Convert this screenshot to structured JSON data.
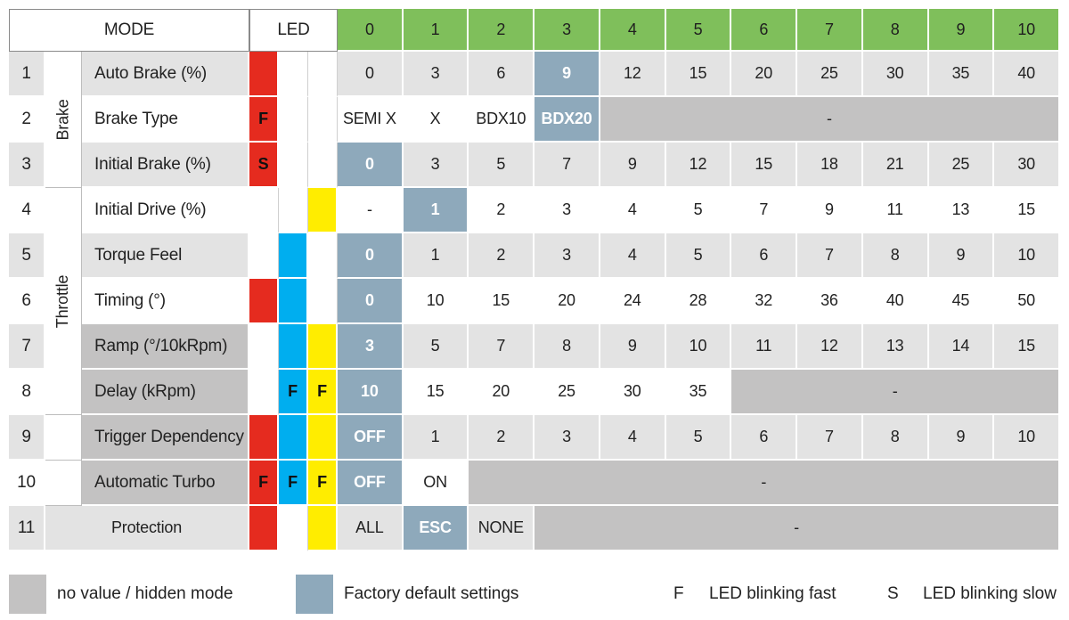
{
  "header": {
    "mode_label": "MODE",
    "led_label": "LED",
    "levels": [
      "0",
      "1",
      "2",
      "3",
      "4",
      "5",
      "6",
      "7",
      "8",
      "9",
      "10"
    ]
  },
  "groups": [
    {
      "name": "Brake",
      "rows": [
        1,
        3
      ]
    },
    {
      "name": "Throttle",
      "rows": [
        4,
        8
      ]
    }
  ],
  "rows": [
    {
      "num": "1",
      "name": "Auto Brake (%)",
      "leds": [
        {
          "color": "red",
          "mark": ""
        },
        {
          "color": "",
          "mark": ""
        },
        {
          "color": "",
          "mark": ""
        }
      ],
      "values": [
        "0",
        "3",
        "6",
        "9",
        "12",
        "15",
        "20",
        "25",
        "30",
        "35",
        "40"
      ],
      "default_index": 3
    },
    {
      "num": "2",
      "name": "Brake Type",
      "leds": [
        {
          "color": "red",
          "mark": "F"
        },
        {
          "color": "",
          "mark": ""
        },
        {
          "color": "",
          "mark": ""
        }
      ],
      "values": [
        "SEMI X",
        "X",
        "BDX10",
        "BDX20"
      ],
      "default_index": 3,
      "hidden_text": "-"
    },
    {
      "num": "3",
      "name": "Initial Brake (%)",
      "leds": [
        {
          "color": "red",
          "mark": "S"
        },
        {
          "color": "",
          "mark": ""
        },
        {
          "color": "",
          "mark": ""
        }
      ],
      "values": [
        "0",
        "3",
        "5",
        "7",
        "9",
        "12",
        "15",
        "18",
        "21",
        "25",
        "30"
      ],
      "default_index": 0
    },
    {
      "num": "4",
      "name": "Initial Drive (%)",
      "leds": [
        {
          "color": "",
          "mark": ""
        },
        {
          "color": "",
          "mark": ""
        },
        {
          "color": "yellow",
          "mark": ""
        }
      ],
      "values": [
        "-",
        "1",
        "2",
        "3",
        "4",
        "5",
        "7",
        "9",
        "11",
        "13",
        "15"
      ],
      "default_index": 1
    },
    {
      "num": "5",
      "name": "Torque Feel",
      "leds": [
        {
          "color": "",
          "mark": ""
        },
        {
          "color": "blue",
          "mark": ""
        },
        {
          "color": "",
          "mark": ""
        }
      ],
      "values": [
        "0",
        "1",
        "2",
        "3",
        "4",
        "5",
        "6",
        "7",
        "8",
        "9",
        "10"
      ],
      "default_index": 0
    },
    {
      "num": "6",
      "name": "Timing (°)",
      "leds": [
        {
          "color": "red",
          "mark": ""
        },
        {
          "color": "blue",
          "mark": ""
        },
        {
          "color": "",
          "mark": ""
        }
      ],
      "values": [
        "0",
        "10",
        "15",
        "20",
        "24",
        "28",
        "32",
        "36",
        "40",
        "45",
        "50"
      ],
      "default_index": 0
    },
    {
      "num": "7",
      "name": "Ramp (°/10kRpm)",
      "leds": [
        {
          "color": "",
          "mark": ""
        },
        {
          "color": "blue",
          "mark": ""
        },
        {
          "color": "yellow",
          "mark": ""
        }
      ],
      "values": [
        "3",
        "5",
        "7",
        "8",
        "9",
        "10",
        "11",
        "12",
        "13",
        "14",
        "15"
      ],
      "default_index": 0
    },
    {
      "num": "8",
      "name": "Delay (kRpm)",
      "leds": [
        {
          "color": "",
          "mark": ""
        },
        {
          "color": "blue",
          "mark": "F"
        },
        {
          "color": "yellow",
          "mark": "F"
        }
      ],
      "values": [
        "10",
        "15",
        "20",
        "25",
        "30",
        "35"
      ],
      "default_index": 0,
      "hidden_text": "-"
    },
    {
      "num": "9",
      "name": "Trigger Dependency",
      "leds": [
        {
          "color": "red",
          "mark": ""
        },
        {
          "color": "blue",
          "mark": ""
        },
        {
          "color": "yellow",
          "mark": ""
        }
      ],
      "values": [
        "OFF",
        "1",
        "2",
        "3",
        "4",
        "5",
        "6",
        "7",
        "8",
        "9",
        "10"
      ],
      "default_index": 0
    },
    {
      "num": "10",
      "name": "Automatic Turbo",
      "leds": [
        {
          "color": "red",
          "mark": "F"
        },
        {
          "color": "blue",
          "mark": "F"
        },
        {
          "color": "yellow",
          "mark": "F"
        }
      ],
      "values": [
        "OFF",
        "ON"
      ],
      "default_index": 0,
      "hidden_text": "-"
    },
    {
      "num": "11",
      "name": "Protection",
      "leds": [
        {
          "color": "red",
          "mark": ""
        },
        {
          "color": "",
          "mark": ""
        },
        {
          "color": "yellow",
          "mark": ""
        }
      ],
      "values": [
        "ALL",
        "ESC",
        "NONE"
      ],
      "default_index": 1,
      "hidden_text": "-"
    }
  ],
  "colors": {
    "header_green": "#7fbf5b",
    "default_blue_gray": "#8ea9bb",
    "hidden_gray": "#c3c2c2",
    "light_gray": "#e3e3e3",
    "led_red": "#e52b1f",
    "led_blue": "#00aeef",
    "led_yellow": "#ffed00"
  },
  "legend": {
    "hidden_label": "no value / hidden mode",
    "default_label": "Factory default settings",
    "fast_symbol": "F",
    "fast_label": "LED blinking fast",
    "slow_symbol": "S",
    "slow_label": "LED blinking slow"
  }
}
